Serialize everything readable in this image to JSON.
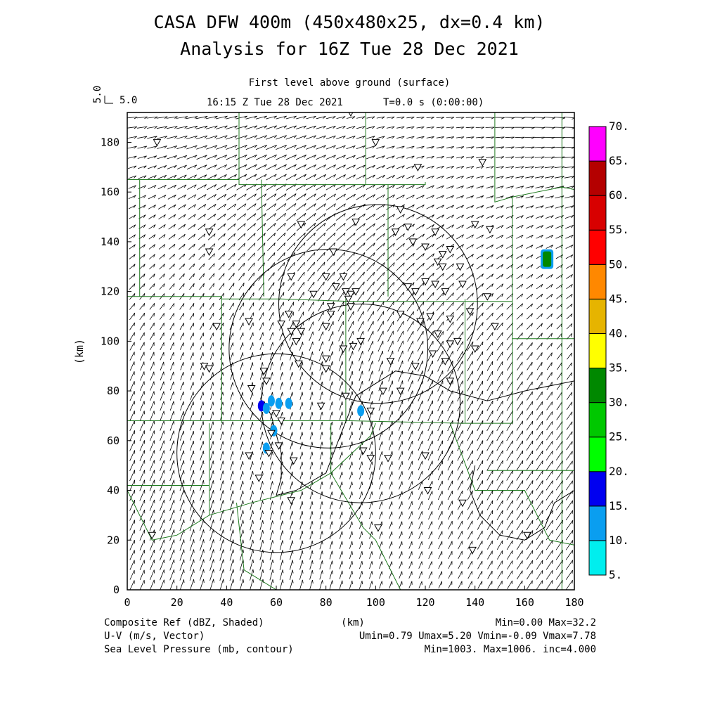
{
  "chart_data": {
    "type": "heatmap",
    "title": "CASA DFW 400m (450x480x25, dx=0.4 km)",
    "subtitle": "Analysis for 16Z Tue 28 Dec 2021",
    "level_label": "First level above ground (surface)",
    "time_label": "16:15 Z Tue 28 Dec 2021",
    "time_offset": "T=0.0 s (0:00:00)",
    "vector_ref_label": "5.0",
    "vector_ref_side": "5.0",
    "xlabel": "(km)",
    "ylabel": "(km)",
    "xlim": [
      0,
      180
    ],
    "ylim": [
      0,
      192
    ],
    "x_ticks": [
      "0",
      "20",
      "40",
      "60",
      "80",
      "100",
      "120",
      "140",
      "160",
      "180"
    ],
    "y_ticks": [
      "0",
      "20",
      "40",
      "60",
      "80",
      "100",
      "120",
      "140",
      "160",
      "180"
    ],
    "colorbar": {
      "levels": [
        "5.",
        "10.",
        "15.",
        "20.",
        "25.",
        "30.",
        "35.",
        "40.",
        "45.",
        "50.",
        "55.",
        "60.",
        "65.",
        "70."
      ],
      "colors": [
        "#00eeee",
        "#0a9ef0",
        "#0000f0",
        "#00ff00",
        "#00c800",
        "#008800",
        "#ffff00",
        "#e6b400",
        "#ff8800",
        "#ff0000",
        "#d80000",
        "#b40000",
        "#ff00ff"
      ]
    },
    "footer": {
      "field1": "Composite Ref (dBZ, Shaded)",
      "field1_stats": "Min=0.00 Max=32.2",
      "field2": "U-V (m/s, Vector)",
      "field2_stats": "Umin=0.79 Umax=5.20 Vmin=-0.09 Vmax=7.78",
      "field3": "Sea Level Pressure (mb, contour)",
      "field3_stats": "Min=1003. Max=1006. inc=4.000",
      "xunit": "(km)"
    },
    "reflectivity_cells": [
      {
        "x": 54,
        "y": 74,
        "dbz": 15
      },
      {
        "x": 56,
        "y": 73,
        "dbz": 12
      },
      {
        "x": 58,
        "y": 76,
        "dbz": 10
      },
      {
        "x": 61,
        "y": 75,
        "dbz": 12
      },
      {
        "x": 65,
        "y": 75,
        "dbz": 10
      },
      {
        "x": 59,
        "y": 64,
        "dbz": 10
      },
      {
        "x": 56,
        "y": 57,
        "dbz": 10
      },
      {
        "x": 94,
        "y": 72,
        "dbz": 10
      },
      {
        "x": 169,
        "y": 133,
        "dbz": 30
      }
    ],
    "radar_rings": [
      {
        "cx": 101,
        "cy": 115,
        "r": 40
      },
      {
        "cx": 81,
        "cy": 97,
        "r": 40
      },
      {
        "cx": 94,
        "cy": 75,
        "r": 40
      },
      {
        "cx": 60,
        "cy": 55,
        "r": 40
      }
    ],
    "stations": [
      [
        12,
        180
      ],
      [
        90,
        192
      ],
      [
        100,
        180
      ],
      [
        117,
        170
      ],
      [
        143,
        172
      ],
      [
        33,
        144
      ],
      [
        33,
        136
      ],
      [
        70,
        147
      ],
      [
        83,
        136
      ],
      [
        92,
        148
      ],
      [
        110,
        153
      ],
      [
        108,
        144
      ],
      [
        113,
        146
      ],
      [
        115,
        140
      ],
      [
        120,
        138
      ],
      [
        124,
        144
      ],
      [
        125,
        132
      ],
      [
        127,
        130
      ],
      [
        130,
        137
      ],
      [
        124,
        123
      ],
      [
        127,
        135
      ],
      [
        80,
        126
      ],
      [
        87,
        126
      ],
      [
        84,
        122
      ],
      [
        88,
        120
      ],
      [
        90,
        119
      ],
      [
        89,
        117
      ],
      [
        92,
        120
      ],
      [
        66,
        126
      ],
      [
        75,
        119
      ],
      [
        82,
        114
      ],
      [
        90,
        114
      ],
      [
        113,
        122
      ],
      [
        116,
        120
      ],
      [
        120,
        124
      ],
      [
        128,
        120
      ],
      [
        135,
        123
      ],
      [
        134,
        130
      ],
      [
        140,
        147
      ],
      [
        146,
        145
      ],
      [
        130,
        109
      ],
      [
        125,
        103
      ],
      [
        118,
        108
      ],
      [
        110,
        111
      ],
      [
        122,
        110
      ],
      [
        138,
        112
      ],
      [
        145,
        118
      ],
      [
        148,
        106
      ],
      [
        49,
        108
      ],
      [
        36,
        106
      ],
      [
        62,
        107
      ],
      [
        66,
        104
      ],
      [
        68,
        107
      ],
      [
        70,
        104
      ],
      [
        68,
        100
      ],
      [
        80,
        106
      ],
      [
        82,
        111
      ],
      [
        65,
        111
      ],
      [
        31,
        90
      ],
      [
        33,
        89
      ],
      [
        55,
        88
      ],
      [
        56,
        84
      ],
      [
        50,
        81
      ],
      [
        69,
        91
      ],
      [
        80,
        89
      ],
      [
        80,
        93
      ],
      [
        87,
        97
      ],
      [
        91,
        98
      ],
      [
        94,
        100
      ],
      [
        106,
        92
      ],
      [
        116,
        90
      ],
      [
        123,
        95
      ],
      [
        130,
        99
      ],
      [
        133,
        100
      ],
      [
        128,
        92
      ],
      [
        140,
        97
      ],
      [
        130,
        84
      ],
      [
        110,
        80
      ],
      [
        78,
        74
      ],
      [
        88,
        78
      ],
      [
        98,
        72
      ],
      [
        103,
        80
      ],
      [
        60,
        71
      ],
      [
        58,
        63
      ],
      [
        57,
        55
      ],
      [
        61,
        58
      ],
      [
        67,
        52
      ],
      [
        62,
        68
      ],
      [
        53,
        45
      ],
      [
        49,
        54
      ],
      [
        66,
        36
      ],
      [
        95,
        56
      ],
      [
        98,
        53
      ],
      [
        105,
        53
      ],
      [
        121,
        40
      ],
      [
        120,
        54
      ],
      [
        135,
        35
      ],
      [
        139,
        16
      ],
      [
        101,
        25
      ],
      [
        161,
        22
      ],
      [
        10,
        22
      ]
    ]
  }
}
